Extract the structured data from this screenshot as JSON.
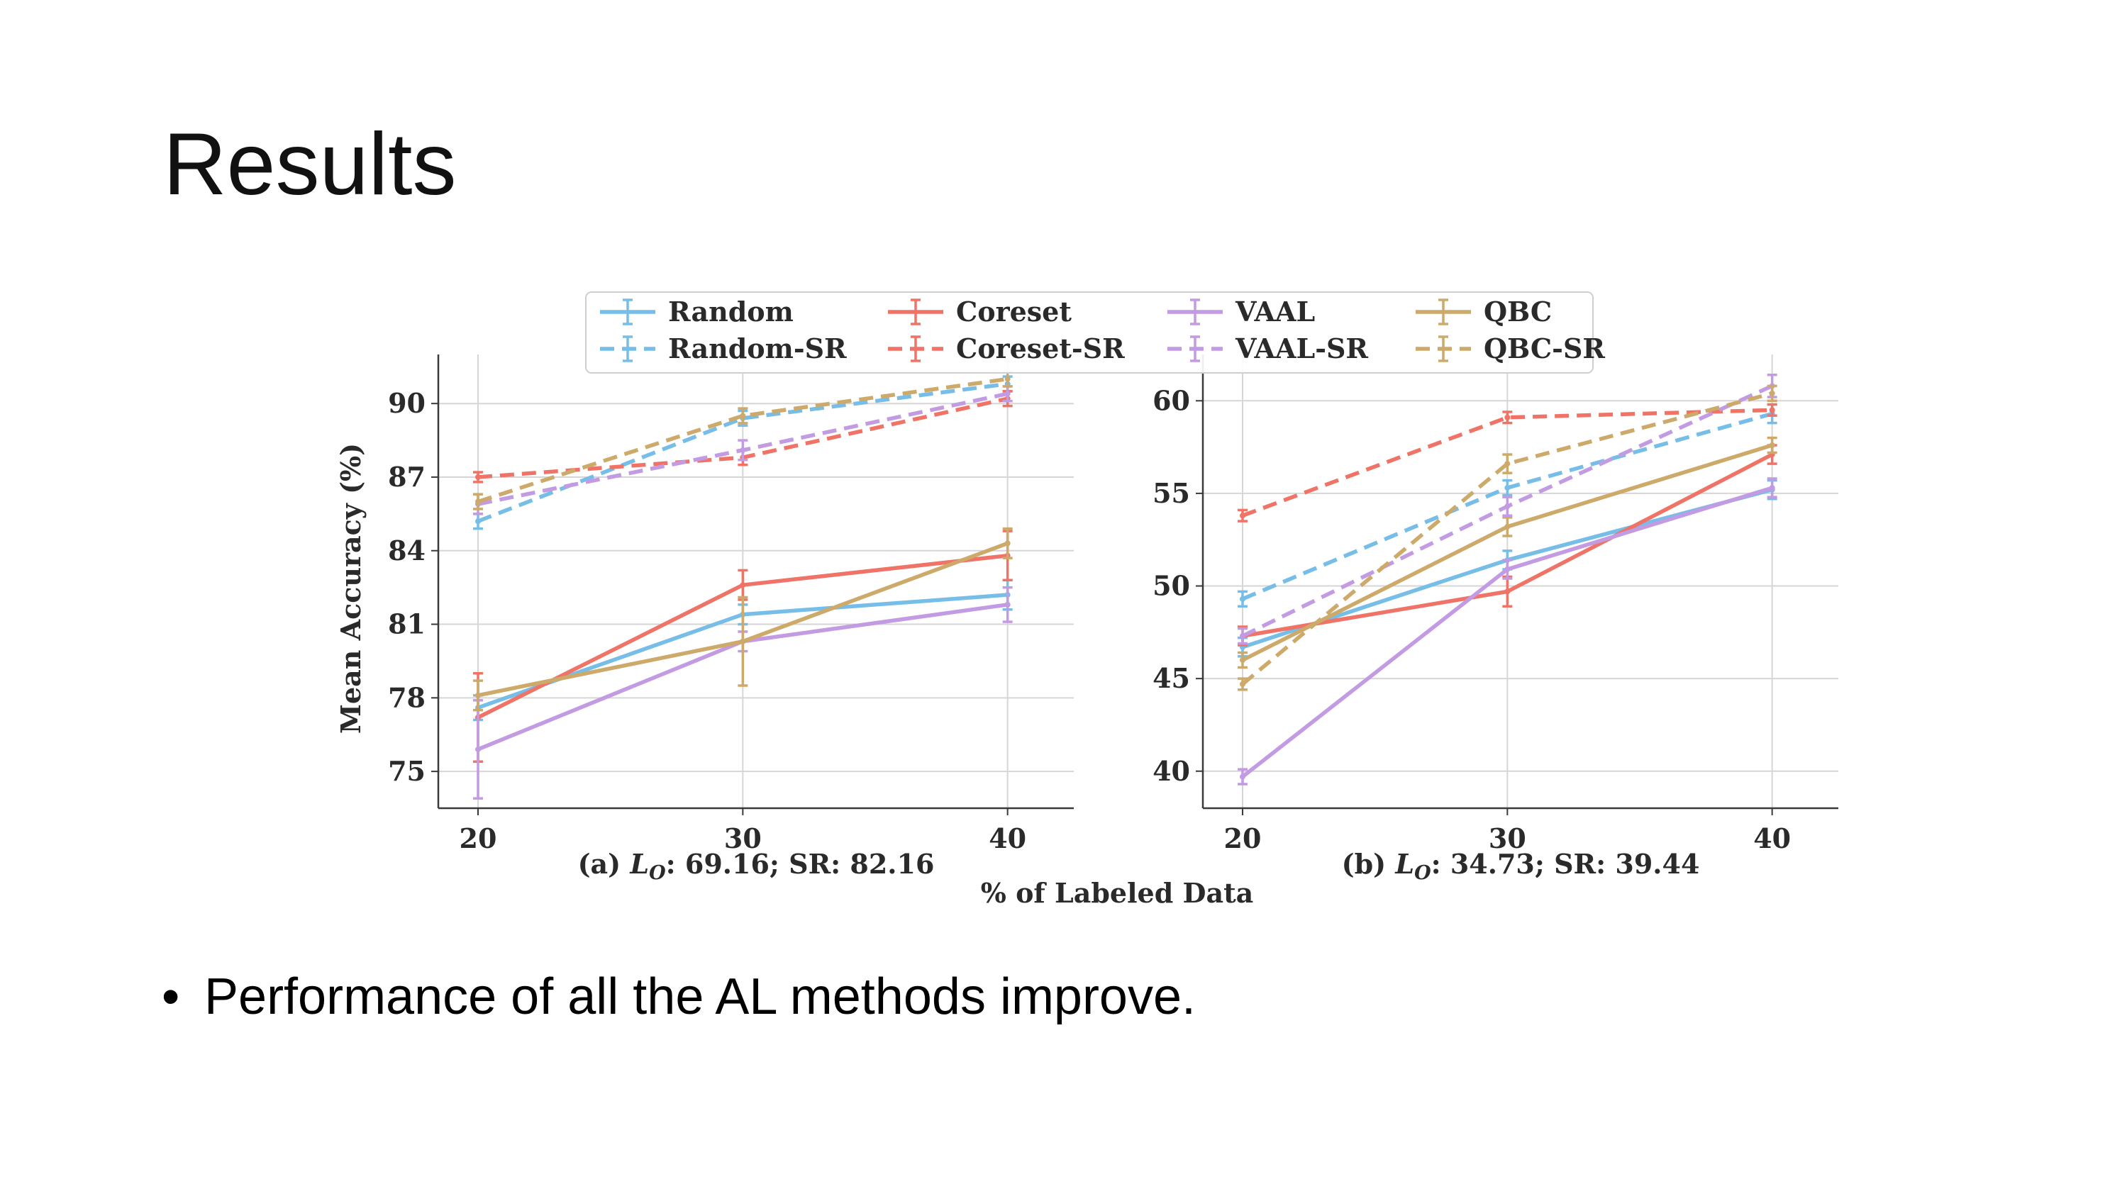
{
  "slide": {
    "title": "Results",
    "bullet": "Performance of all the AL methods improve."
  },
  "colors": {
    "Random": "#76bde8",
    "Coreset": "#ef7467",
    "VAAL": "#c39be3",
    "QBC": "#cdaa6a",
    "grid": "#d6d6d6",
    "axis": "#3a3a3a"
  },
  "chart_data": [
    {
      "type": "line",
      "caption": "(a) L_O: 69.16; SR: 82.16",
      "caption_prefix": "(a) ",
      "caption_var": "L",
      "caption_sub": "O",
      "caption_suffix": ": 69.16; SR: 82.16",
      "xlabel": "% of Labeled Data",
      "ylabel": "Mean Accuracy (%)",
      "x": [
        20,
        30,
        40
      ],
      "xticks": [
        20,
        30,
        40
      ],
      "xlim": [
        18.5,
        42.5
      ],
      "yticks": [
        75,
        78,
        81,
        84,
        87,
        90
      ],
      "ylim": [
        73.5,
        92
      ],
      "grid": true,
      "series": [
        {
          "name": "Random",
          "method": "Random",
          "style": "solid",
          "values": [
            77.6,
            81.4,
            82.2
          ],
          "err": [
            0.5,
            0.4,
            0.6
          ]
        },
        {
          "name": "Random-SR",
          "method": "Random",
          "style": "dashed",
          "values": [
            85.2,
            89.4,
            90.8
          ],
          "err": [
            0.3,
            0.3,
            0.3
          ]
        },
        {
          "name": "Coreset",
          "method": "Coreset",
          "style": "solid",
          "values": [
            77.2,
            82.6,
            83.8
          ],
          "err": [
            1.8,
            0.6,
            1.0
          ]
        },
        {
          "name": "Coreset-SR",
          "method": "Coreset",
          "style": "dashed",
          "values": [
            87.0,
            87.8,
            90.2
          ],
          "err": [
            0.2,
            0.3,
            0.3
          ]
        },
        {
          "name": "VAAL",
          "method": "VAAL",
          "style": "solid",
          "values": [
            75.9,
            80.3,
            81.8
          ],
          "err": [
            2.0,
            0.4,
            0.7
          ]
        },
        {
          "name": "VAAL-SR",
          "method": "VAAL",
          "style": "dashed",
          "values": [
            85.9,
            88.1,
            90.4
          ],
          "err": [
            0.4,
            0.4,
            0.3
          ]
        },
        {
          "name": "QBC",
          "method": "QBC",
          "style": "solid",
          "values": [
            78.1,
            80.3,
            84.3
          ],
          "err": [
            0.6,
            1.8,
            0.6
          ]
        },
        {
          "name": "QBC-SR",
          "method": "QBC",
          "style": "dashed",
          "values": [
            86.0,
            89.5,
            91.0
          ],
          "err": [
            0.3,
            0.3,
            0.3
          ]
        }
      ]
    },
    {
      "type": "line",
      "caption": "(b) L_O: 34.73; SR: 39.44",
      "caption_prefix": "(b) ",
      "caption_var": "L",
      "caption_sub": "O",
      "caption_suffix": ": 34.73; SR: 39.44",
      "x": [
        20,
        30,
        40
      ],
      "xticks": [
        20,
        30,
        40
      ],
      "xlim": [
        18.5,
        42.5
      ],
      "yticks": [
        40,
        45,
        50,
        55,
        60
      ],
      "ylim": [
        38,
        62.5
      ],
      "grid": true,
      "series": [
        {
          "name": "Random",
          "method": "Random",
          "style": "solid",
          "values": [
            46.7,
            51.4,
            55.2
          ],
          "err": [
            0.5,
            0.5,
            0.5
          ]
        },
        {
          "name": "Random-SR",
          "method": "Random",
          "style": "dashed",
          "values": [
            49.3,
            55.3,
            59.3
          ],
          "err": [
            0.4,
            0.4,
            0.5
          ]
        },
        {
          "name": "Coreset",
          "method": "Coreset",
          "style": "solid",
          "values": [
            47.3,
            49.7,
            57.1
          ],
          "err": [
            0.5,
            0.8,
            0.5
          ]
        },
        {
          "name": "Coreset-SR",
          "method": "Coreset",
          "style": "dashed",
          "values": [
            53.8,
            59.1,
            59.5
          ],
          "err": [
            0.3,
            0.3,
            0.3
          ]
        },
        {
          "name": "VAAL",
          "method": "VAAL",
          "style": "solid",
          "values": [
            39.7,
            50.9,
            55.3
          ],
          "err": [
            0.4,
            0.5,
            0.5
          ]
        },
        {
          "name": "VAAL-SR",
          "method": "VAAL",
          "style": "dashed",
          "values": [
            47.3,
            54.3,
            60.8
          ],
          "err": [
            0.4,
            0.5,
            0.6
          ]
        },
        {
          "name": "QBC",
          "method": "QBC",
          "style": "solid",
          "values": [
            46.0,
            53.2,
            57.6
          ],
          "err": [
            0.4,
            0.5,
            0.4
          ]
        },
        {
          "name": "QBC-SR",
          "method": "QBC",
          "style": "dashed",
          "values": [
            44.7,
            56.6,
            60.4
          ],
          "err": [
            0.3,
            0.5,
            0.4
          ]
        }
      ]
    }
  ],
  "legend": {
    "placement": "top-center",
    "entries": [
      "Random",
      "Coreset",
      "VAAL",
      "QBC",
      "Random-SR",
      "Coreset-SR",
      "VAAL-SR",
      "QBC-SR"
    ]
  }
}
